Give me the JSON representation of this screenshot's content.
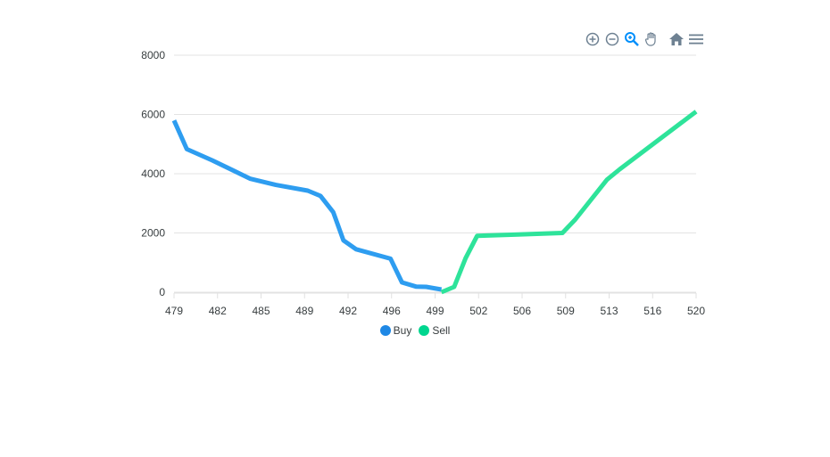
{
  "chart_data": {
    "type": "area",
    "x_ticks": [
      "479",
      "482",
      "485",
      "489",
      "492",
      "496",
      "499",
      "502",
      "506",
      "509",
      "513",
      "516",
      "520"
    ],
    "y_ticks": [
      "0",
      "2000",
      "4000",
      "6000",
      "8000"
    ],
    "xlim": [
      479,
      520
    ],
    "ylim": [
      0,
      8000
    ],
    "grid": true,
    "legend": "bottom",
    "series": [
      {
        "name": "Buy",
        "color": "#2e9df0",
        "legend_color": "#1e88e5",
        "points": [
          [
            479.0,
            5800
          ],
          [
            480.0,
            4830
          ],
          [
            482.0,
            4450
          ],
          [
            485.0,
            3830
          ],
          [
            487.0,
            3620
          ],
          [
            489.5,
            3430
          ],
          [
            490.5,
            3250
          ],
          [
            491.5,
            2700
          ],
          [
            492.3,
            1750
          ],
          [
            493.3,
            1450
          ],
          [
            496.0,
            1130
          ],
          [
            496.9,
            330
          ],
          [
            498.0,
            190
          ],
          [
            498.8,
            180
          ],
          [
            500.0,
            90
          ]
        ]
      },
      {
        "name": "Sell",
        "color": "#2ee39a",
        "legend_color": "#00d68f",
        "points": [
          [
            500.0,
            0
          ],
          [
            501.0,
            180
          ],
          [
            501.9,
            1150
          ],
          [
            502.8,
            1900
          ],
          [
            506.0,
            1950
          ],
          [
            509.5,
            2000
          ],
          [
            510.5,
            2450
          ],
          [
            513.0,
            3800
          ],
          [
            514.0,
            4150
          ],
          [
            520.0,
            6100
          ]
        ]
      }
    ]
  },
  "toolbar": {
    "icons": [
      "zoom-in-icon",
      "zoom-out-icon",
      "zoom-select-icon",
      "pan-hand-icon",
      "home-reset-icon",
      "menu-icon"
    ]
  }
}
